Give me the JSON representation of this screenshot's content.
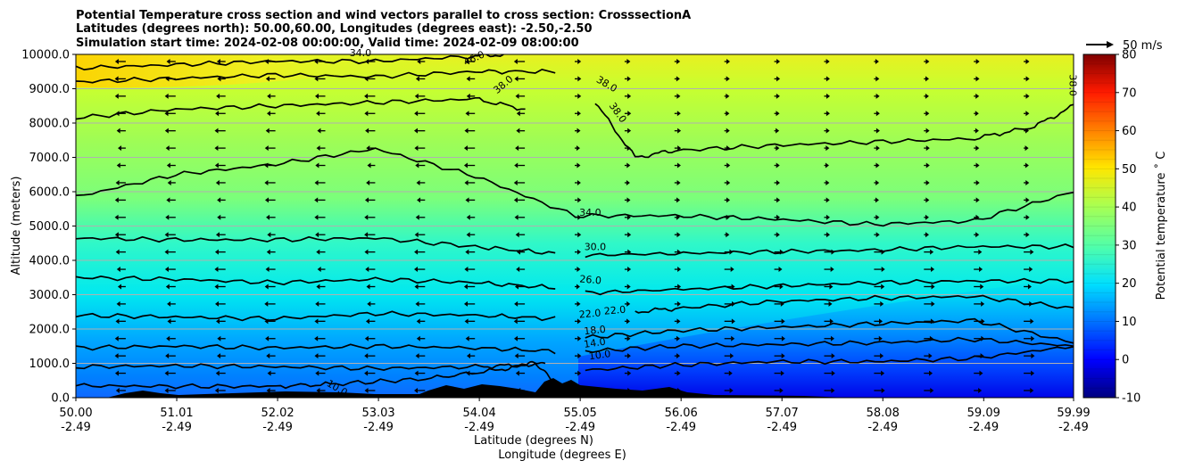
{
  "chart_data": {
    "type": "contourf",
    "title_lines": [
      "Potential Temperature cross section and wind vectors parallel to cross section: CrosssectionA",
      "Latitudes (degrees north): 50.00,60.00, Longitudes (degrees east): -2.50,-2.50",
      "Simulation start time: 2024-02-08 00:00:00, Valid time: 2024-02-09 08:00:00"
    ],
    "xlabel_lat": "Latitude (degrees N)",
    "xlabel_lon": "Longitude (degrees E)",
    "ylabel": "Altitude (meters)",
    "xlim": [
      50.0,
      59.99
    ],
    "ylim": [
      0,
      10000
    ],
    "x_ticks": [
      {
        "lat": "50.00",
        "lon": "-2.49",
        "value": 50.0
      },
      {
        "lat": "51.01",
        "lon": "-2.49",
        "value": 51.01
      },
      {
        "lat": "52.02",
        "lon": "-2.49",
        "value": 52.02
      },
      {
        "lat": "53.03",
        "lon": "-2.49",
        "value": 53.03
      },
      {
        "lat": "54.04",
        "lon": "-2.49",
        "value": 54.04
      },
      {
        "lat": "55.05",
        "lon": "-2.49",
        "value": 55.05
      },
      {
        "lat": "56.06",
        "lon": "-2.49",
        "value": 56.06
      },
      {
        "lat": "57.07",
        "lon": "-2.49",
        "value": 57.07
      },
      {
        "lat": "58.08",
        "lon": "-2.49",
        "value": 58.08
      },
      {
        "lat": "59.09",
        "lon": "-2.49",
        "value": 59.09
      },
      {
        "lat": "59.99",
        "lon": "-2.49",
        "value": 59.99
      }
    ],
    "y_ticks": [
      0,
      1000,
      2000,
      3000,
      4000,
      5000,
      6000,
      7000,
      8000,
      9000,
      10000
    ],
    "y_tick_labels": [
      "0.0",
      "1000.0",
      "2000.0",
      "3000.0",
      "4000.0",
      "5000.0",
      "6000.0",
      "7000.0",
      "8000.0",
      "9000.0",
      "10000.0"
    ],
    "grid": true,
    "colorbar": {
      "label": "Potential temperature ˚ C",
      "min": -10,
      "max": 80,
      "ticks": [
        -10,
        0,
        10,
        20,
        30,
        40,
        50,
        60,
        70,
        80
      ],
      "colormap": "jet"
    },
    "quiver_key": {
      "label": "50 m/s",
      "speed": 50
    },
    "contour_levels": [
      10,
      14,
      18,
      22,
      26,
      30,
      34,
      38,
      42,
      46
    ],
    "contour_labels": [
      {
        "text": "10.0",
        "x": 55.25,
        "y": 1150,
        "angle": -8
      },
      {
        "text": "14.0",
        "x": 55.2,
        "y": 1500,
        "angle": -8
      },
      {
        "text": "18.0",
        "x": 55.2,
        "y": 1870,
        "angle": -6
      },
      {
        "text": "22.0",
        "x": 55.15,
        "y": 2350,
        "angle": -5
      },
      {
        "text": "22.0",
        "x": 55.4,
        "y": 2450,
        "angle": -5
      },
      {
        "text": "26.0",
        "x": 55.15,
        "y": 3340,
        "angle": 5
      },
      {
        "text": "30.0",
        "x": 55.2,
        "y": 4300,
        "angle": 0
      },
      {
        "text": "34.0",
        "x": 55.15,
        "y": 5300,
        "angle": 0
      },
      {
        "text": "38.0",
        "x": 54.3,
        "y": 9050,
        "angle": -40
      },
      {
        "text": "38.0",
        "x": 55.3,
        "y": 9050,
        "angle": 30
      },
      {
        "text": "38.0",
        "x": 55.4,
        "y": 8250,
        "angle": 55
      },
      {
        "text": "38.0",
        "x": 59.95,
        "y": 9100,
        "angle": 90
      },
      {
        "text": "46.0",
        "x": 54.0,
        "y": 9800,
        "angle": -25
      },
      {
        "text": "34.0",
        "x": 52.85,
        "y": 9950,
        "angle": 0
      },
      {
        "text": "10.0",
        "x": 52.6,
        "y": 200,
        "angle": 30
      }
    ],
    "isotherms": [
      {
        "level": 10,
        "points": [
          [
            50,
            350
          ],
          [
            51,
            330
          ],
          [
            52,
            330
          ],
          [
            52.6,
            400
          ],
          [
            53.5,
            550
          ],
          [
            54.2,
            800
          ],
          [
            54.6,
            1000
          ],
          [
            54.8,
            400
          ]
        ]
      },
      {
        "level": 10,
        "points": [
          [
            55.1,
            800
          ],
          [
            56,
            950
          ],
          [
            57,
            1050
          ],
          [
            58,
            1050
          ],
          [
            59,
            1150
          ],
          [
            59.99,
            1500
          ]
        ]
      },
      {
        "level": 14,
        "points": [
          [
            50,
            900
          ],
          [
            51,
            930
          ],
          [
            52,
            900
          ],
          [
            53,
            850
          ],
          [
            54,
            900
          ],
          [
            54.5,
            950
          ],
          [
            54.7,
            1050
          ]
        ]
      },
      {
        "level": 14,
        "points": [
          [
            55.1,
            1350
          ],
          [
            56,
            1500
          ],
          [
            57,
            1550
          ],
          [
            58,
            1600
          ],
          [
            59,
            1700
          ],
          [
            59.99,
            1500
          ]
        ]
      },
      {
        "level": 18,
        "points": [
          [
            50,
            1450
          ],
          [
            51,
            1500
          ],
          [
            52,
            1450
          ],
          [
            53,
            1500
          ],
          [
            54,
            1450
          ],
          [
            54.8,
            1350
          ]
        ]
      },
      {
        "level": 18,
        "points": [
          [
            55.1,
            1750
          ],
          [
            56,
            1950
          ],
          [
            57,
            2050
          ],
          [
            58,
            2150
          ],
          [
            59,
            2250
          ],
          [
            59.99,
            1600
          ]
        ]
      },
      {
        "level": 22,
        "points": [
          [
            50,
            2400
          ],
          [
            51,
            2350
          ],
          [
            52,
            2300
          ],
          [
            53,
            2450
          ],
          [
            54,
            2400
          ],
          [
            54.8,
            2300
          ]
        ]
      },
      {
        "level": 22,
        "points": [
          [
            55.6,
            2500
          ],
          [
            56,
            2600
          ],
          [
            57,
            2800
          ],
          [
            58,
            2900
          ],
          [
            59,
            2950
          ],
          [
            59.99,
            2600
          ]
        ]
      },
      {
        "level": 26,
        "points": [
          [
            50,
            3500
          ],
          [
            51,
            3450
          ],
          [
            52,
            3350
          ],
          [
            53,
            3450
          ],
          [
            54,
            3350
          ],
          [
            54.8,
            3200
          ]
        ]
      },
      {
        "level": 26,
        "points": [
          [
            55.1,
            3050
          ],
          [
            56,
            3150
          ],
          [
            57,
            3250
          ],
          [
            58,
            3350
          ],
          [
            59,
            3400
          ],
          [
            59.99,
            3400
          ]
        ]
      },
      {
        "level": 30,
        "points": [
          [
            50,
            4650
          ],
          [
            51,
            4600
          ],
          [
            52,
            4600
          ],
          [
            53,
            4650
          ],
          [
            54,
            4400
          ],
          [
            54.8,
            4200
          ]
        ]
      },
      {
        "level": 30,
        "points": [
          [
            55.1,
            4150
          ],
          [
            56,
            4200
          ],
          [
            57,
            4250
          ],
          [
            58,
            4300
          ],
          [
            59,
            4400
          ],
          [
            59.99,
            4400
          ]
        ]
      },
      {
        "level": 34,
        "points": [
          [
            50,
            5850
          ],
          [
            51,
            6500
          ],
          [
            52,
            6800
          ],
          [
            53,
            7250
          ],
          [
            54,
            6450
          ],
          [
            55,
            5300
          ],
          [
            56,
            5300
          ],
          [
            57,
            5200
          ],
          [
            58,
            5050
          ],
          [
            59,
            5150
          ],
          [
            59.99,
            6000
          ]
        ]
      },
      {
        "level": 38,
        "points": [
          [
            50,
            8150
          ],
          [
            51,
            8400
          ],
          [
            52,
            8500
          ],
          [
            53,
            8600
          ],
          [
            54,
            8700
          ],
          [
            54.5,
            8400
          ]
        ]
      },
      {
        "level": 38,
        "points": [
          [
            55.2,
            8600
          ],
          [
            55.6,
            7000
          ],
          [
            56,
            7200
          ],
          [
            57,
            7350
          ],
          [
            58,
            7450
          ],
          [
            59,
            7550
          ],
          [
            59.6,
            7900
          ],
          [
            59.99,
            8500
          ]
        ]
      },
      {
        "level": 42,
        "points": [
          [
            50,
            9200
          ],
          [
            51,
            9300
          ],
          [
            52,
            9400
          ],
          [
            53,
            9350
          ],
          [
            54,
            9500
          ],
          [
            54.8,
            9500
          ]
        ]
      },
      {
        "level": 46,
        "points": [
          [
            50,
            9600
          ],
          [
            51,
            9700
          ],
          [
            52,
            9800
          ],
          [
            53,
            9800
          ],
          [
            54,
            9950
          ],
          [
            54.3,
            10000
          ]
        ]
      }
    ]
  }
}
